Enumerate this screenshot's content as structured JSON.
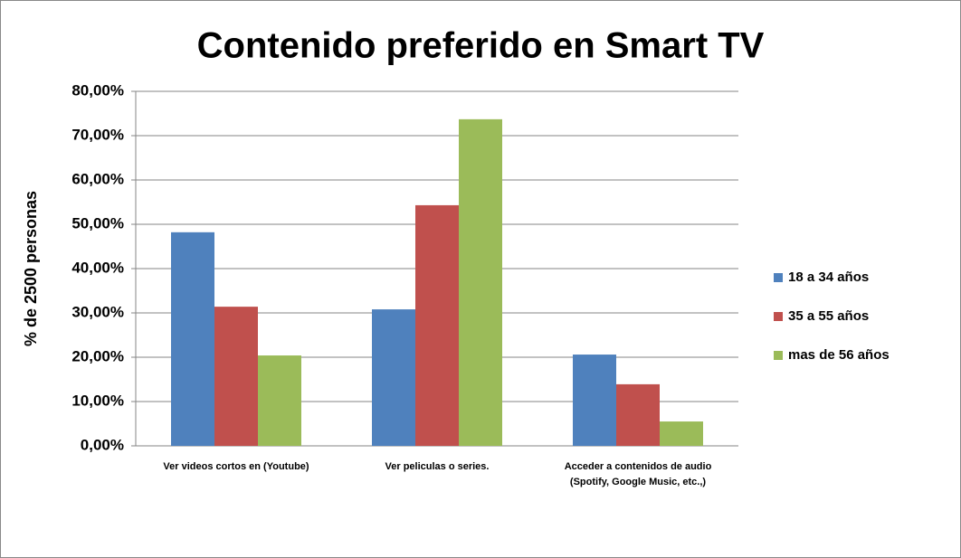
{
  "chart_data": {
    "type": "bar",
    "title": "Contenido preferido en Smart TV",
    "y_label": "% de 2500 personas",
    "categories": [
      "Ver videos cortos en (Youtube)",
      "Ver peliculas o series.",
      "Acceder a contenidos de audio\n(Spotify, Google Music, etc.,)"
    ],
    "series": [
      {
        "name": "18 a 34 años",
        "color": "#4f81bd",
        "values": [
          48.2,
          30.8,
          20.6
        ]
      },
      {
        "name": "35 a 55 años",
        "color": "#c0504d",
        "values": [
          31.4,
          54.3,
          13.9
        ]
      },
      {
        "name": "mas de 56 años",
        "color": "#9bbb59",
        "values": [
          20.4,
          73.7,
          5.5
        ]
      }
    ],
    "ylim": [
      0,
      80
    ],
    "yticks": [
      {
        "value": 0,
        "label": "0,00%"
      },
      {
        "value": 10,
        "label": "10,00%"
      },
      {
        "value": 20,
        "label": "20,00%"
      },
      {
        "value": 30,
        "label": "30,00%"
      },
      {
        "value": 40,
        "label": "40,00%"
      },
      {
        "value": 50,
        "label": "50,00%"
      },
      {
        "value": 60,
        "label": "60,00%"
      },
      {
        "value": 70,
        "label": "70,00%"
      },
      {
        "value": 80,
        "label": "80,00%"
      }
    ],
    "grid": true,
    "legend": "right"
  }
}
